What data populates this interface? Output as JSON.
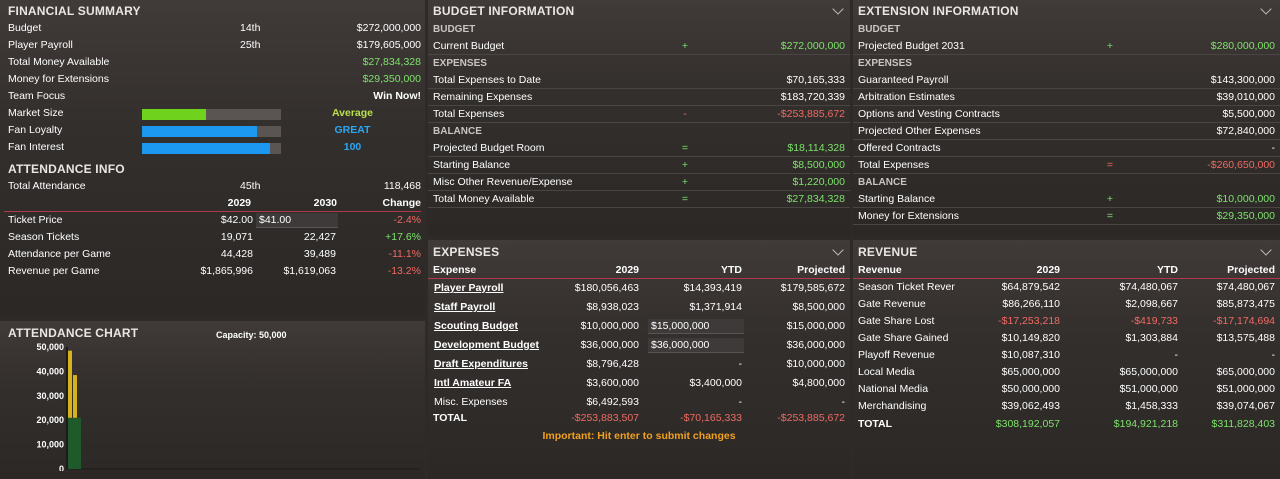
{
  "financial_summary": {
    "title": "FINANCIAL SUMMARY",
    "rows": [
      {
        "label": "Budget",
        "rank": "14th",
        "value": "$272,000,000"
      },
      {
        "label": "Player Payroll",
        "rank": "25th",
        "value": "$179,605,000"
      },
      {
        "label": "Total Money Available",
        "value": "$27,834,328"
      },
      {
        "label": "Money for Extensions",
        "value": "$29,350,000"
      },
      {
        "label": "Team Focus",
        "value": "Win Now!"
      }
    ],
    "market_size": {
      "label": "Market Size",
      "level": 0.46,
      "value": "Average",
      "color": "#6fd21c"
    },
    "fan_loyalty": {
      "label": "Fan Loyalty",
      "level": 0.83,
      "value": "GREAT",
      "color": "#1c98f0"
    },
    "fan_interest": {
      "label": "Fan Interest",
      "level": 0.92,
      "value": "100",
      "color": "#1c98f0"
    }
  },
  "attendance_info": {
    "title": "ATTENDANCE INFO",
    "total_label": "Total Attendance",
    "total_rank": "45th",
    "total_value": "118,468",
    "headers": [
      "2029",
      "2030",
      "Change"
    ],
    "rows": [
      {
        "label": "Ticket Price",
        "y2029": "$42.00",
        "y2030": "$41.00",
        "change": "-2.4%",
        "pos": false
      },
      {
        "label": "Season Tickets",
        "y2029": "19,071",
        "y2030": "22,427",
        "change": "+17.6%",
        "pos": true
      },
      {
        "label": "Attendance per Game",
        "y2029": "44,428",
        "y2030": "39,489",
        "change": "-11.1%",
        "pos": false
      },
      {
        "label": "Revenue per Game",
        "y2029": "$1,865,996",
        "y2030": "$1,619,063",
        "change": "-13.2%",
        "pos": false
      }
    ]
  },
  "attendance_chart": {
    "title": "ATTENDANCE CHART",
    "capacity_label": "Capacity: 50,000"
  },
  "chart_data": {
    "type": "bar",
    "title": "",
    "capacity": 50000,
    "ylim": [
      0,
      50000
    ],
    "yticks": [
      "50,000",
      "40,000",
      "30,000",
      "20,000",
      "10,000",
      "0"
    ],
    "ytick_values": [
      50000,
      40000,
      30000,
      20000,
      10000,
      0
    ],
    "series": [
      {
        "color": "#1f5a2a",
        "values": [
          21000
        ]
      },
      {
        "color": "#d8b21a",
        "values": [
          48500,
          38500
        ]
      }
    ]
  },
  "budget_info": {
    "title": "BUDGET INFORMATION",
    "sections": [
      {
        "header": "BUDGET",
        "rows": [
          {
            "label": "Current Budget",
            "op": "+",
            "value": "$272,000,000",
            "cls": "g"
          }
        ]
      },
      {
        "header": "EXPENSES",
        "rows": [
          {
            "label": "Total Expenses to Date",
            "op": "",
            "value": "$70,165,333",
            "cls": ""
          },
          {
            "label": "Remaining Expenses",
            "op": "",
            "value": "$183,720,339",
            "cls": ""
          },
          {
            "label": "Total Expenses",
            "op": "-",
            "value": "-$253,885,672",
            "cls": "red"
          }
        ]
      },
      {
        "header": "BALANCE",
        "rows": [
          {
            "label": "Projected Budget Room",
            "op": "=",
            "value": "$18,114,328",
            "cls": "g"
          },
          {
            "label": "Starting Balance",
            "op": "+",
            "value": "$8,500,000",
            "cls": "g"
          },
          {
            "label": "Misc Other Revenue/Expense",
            "op": "+",
            "value": "$1,220,000",
            "cls": "g"
          },
          {
            "label": "Total Money Available",
            "op": "=",
            "value": "$27,834,328",
            "cls": "g"
          }
        ]
      }
    ]
  },
  "extension_info": {
    "title": "EXTENSION INFORMATION",
    "sections": [
      {
        "header": "BUDGET",
        "rows": [
          {
            "label": "Projected Budget 2031",
            "op": "+",
            "value": "$280,000,000",
            "cls": "g"
          }
        ]
      },
      {
        "header": "EXPENSES",
        "rows": [
          {
            "label": "Guaranteed Payroll",
            "op": "",
            "value": "$143,300,000",
            "cls": ""
          },
          {
            "label": "Arbitration Estimates",
            "op": "",
            "value": "$39,010,000",
            "cls": ""
          },
          {
            "label": "Options and Vesting Contracts",
            "op": "",
            "value": "$5,500,000",
            "cls": ""
          },
          {
            "label": "Projected Other Expenses",
            "op": "",
            "value": "$72,840,000",
            "cls": ""
          },
          {
            "label": "Offered Contracts",
            "op": "",
            "value": "-",
            "cls": ""
          },
          {
            "label": "Total Expenses",
            "op": "=",
            "value": "-$260,650,000",
            "cls": "red"
          }
        ]
      },
      {
        "header": "BALANCE",
        "rows": [
          {
            "label": "Starting Balance",
            "op": "+",
            "value": "$10,000,000",
            "cls": "g"
          },
          {
            "label": "Money for Extensions",
            "op": "=",
            "value": "$29,350,000",
            "cls": "g"
          }
        ]
      }
    ]
  },
  "expenses": {
    "title": "EXPENSES",
    "headers": [
      "Expense",
      "2029",
      "YTD",
      "Projected"
    ],
    "rows": [
      {
        "label": "Player Payroll",
        "link": true,
        "y2029": "$180,056,463",
        "ytd": "$14,393,419",
        "proj": "$179,585,672",
        "input": false
      },
      {
        "label": "Staff Payroll",
        "link": true,
        "y2029": "$8,938,023",
        "ytd": "$1,371,914",
        "proj": "$8,500,000",
        "input": false
      },
      {
        "label": "Scouting Budget",
        "link": true,
        "y2029": "$10,000,000",
        "ytd": "$15,000,000",
        "proj": "$15,000,000",
        "input": true
      },
      {
        "label": "Development Budget",
        "link": true,
        "y2029": "$36,000,000",
        "ytd": "$36,000,000",
        "proj": "$36,000,000",
        "input": true
      },
      {
        "label": "Draft Expenditures",
        "link": true,
        "y2029": "$8,796,428",
        "ytd": "-",
        "proj": "$10,000,000",
        "input": false
      },
      {
        "label": "Intl Amateur FA",
        "link": true,
        "y2029": "$3,600,000",
        "ytd": "$3,400,000",
        "proj": "$4,800,000",
        "input": false
      },
      {
        "label": "Misc. Expenses",
        "link": false,
        "y2029": "$6,492,593",
        "ytd": "-",
        "proj": "-",
        "input": false
      }
    ],
    "total": {
      "label": "TOTAL",
      "y2029": "-$253,883,507",
      "ytd": "-$70,165,333",
      "proj": "-$253,885,672"
    },
    "note": "Important: Hit enter to submit changes"
  },
  "revenue": {
    "title": "REVENUE",
    "headers": [
      "Revenue",
      "2029",
      "YTD",
      "Projected"
    ],
    "rows": [
      {
        "label": "Season Ticket Revenu",
        "y2029": "$64,879,542",
        "ytd": "$74,480,067",
        "proj": "$74,480,067",
        "neg": false
      },
      {
        "label": "Gate Revenue",
        "y2029": "$86,266,110",
        "ytd": "$2,098,667",
        "proj": "$85,873,475",
        "neg": false
      },
      {
        "label": "Gate Share Lost",
        "y2029": "-$17,253,218",
        "ytd": "-$419,733",
        "proj": "-$17,174,694",
        "neg": true
      },
      {
        "label": "Gate Share Gained",
        "y2029": "$10,149,820",
        "ytd": "$1,303,884",
        "proj": "$13,575,488",
        "neg": false
      },
      {
        "label": "Playoff Revenue",
        "y2029": "$10,087,310",
        "ytd": "-",
        "proj": "-",
        "neg": false
      },
      {
        "label": "Local Media",
        "y2029": "$65,000,000",
        "ytd": "$65,000,000",
        "proj": "$65,000,000",
        "neg": false
      },
      {
        "label": "National Media",
        "y2029": "$50,000,000",
        "ytd": "$51,000,000",
        "proj": "$51,000,000",
        "neg": false
      },
      {
        "label": "Merchandising",
        "y2029": "$39,062,493",
        "ytd": "$1,458,333",
        "proj": "$39,074,067",
        "neg": false
      }
    ],
    "total": {
      "label": "TOTAL",
      "y2029": "$308,192,057",
      "ytd": "$194,921,218",
      "proj": "$311,828,403"
    }
  }
}
